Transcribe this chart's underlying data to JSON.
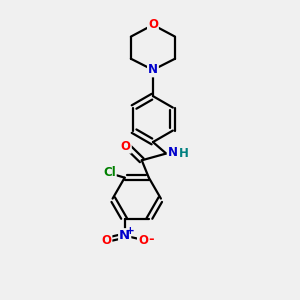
{
  "bg_color": "#f0f0f0",
  "bond_color": "#000000",
  "bond_width": 1.6,
  "atom_colors": {
    "O": "#ff0000",
    "N": "#0000cc",
    "Cl": "#008000",
    "H_color": "#008080"
  },
  "font_size": 8.5,
  "fig_size": [
    3.0,
    3.0
  ],
  "dpi": 100
}
